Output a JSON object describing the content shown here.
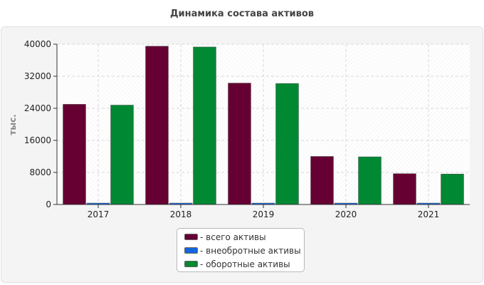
{
  "chart_data": {
    "type": "bar",
    "title": "Динамика состава активов",
    "xlabel": "",
    "ylabel": "тыс.",
    "ylim": [
      0,
      40000
    ],
    "yticks": [
      0,
      8000,
      16000,
      24000,
      32000,
      40000
    ],
    "grid": true,
    "legend_position": "bottom-center",
    "categories": [
      "2017",
      "2018",
      "2019",
      "2020",
      "2021"
    ],
    "series": [
      {
        "name": "- всего активы",
        "color": "#660033",
        "values": [
          25000,
          39500,
          30300,
          12000,
          7700
        ]
      },
      {
        "name": "- внеобротные активы",
        "color": "#1565e0",
        "values": [
          300,
          150,
          150,
          150,
          150
        ]
      },
      {
        "name": "- оборотные активы",
        "color": "#008833",
        "values": [
          24800,
          39300,
          30200,
          11900,
          7600
        ]
      }
    ]
  }
}
